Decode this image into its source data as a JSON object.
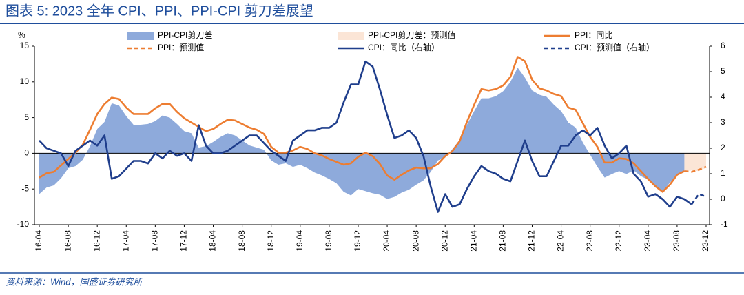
{
  "chart_data": {
    "type": "line",
    "title": "图表 5:  2023 全年 CPI、PPI、PPI-CPI 剪刀差展望",
    "source": "资料来源：Wind，国盛证券研究所",
    "y_label": "%",
    "categories": [
      "16-04",
      null,
      null,
      null,
      "16-08",
      null,
      null,
      null,
      "16-12",
      null,
      null,
      null,
      "17-04",
      null,
      null,
      null,
      "17-08",
      null,
      null,
      null,
      "17-12",
      null,
      null,
      null,
      "18-04",
      null,
      null,
      null,
      "18-08",
      null,
      null,
      null,
      "18-12",
      null,
      null,
      null,
      "19-04",
      null,
      null,
      null,
      "19-08",
      null,
      null,
      null,
      "19-12",
      null,
      null,
      null,
      "20-04",
      null,
      null,
      null,
      "20-08",
      null,
      null,
      null,
      "20-12",
      null,
      null,
      null,
      "21-04",
      null,
      null,
      null,
      "21-08",
      null,
      null,
      null,
      "21-12",
      null,
      null,
      null,
      "22-04",
      null,
      null,
      null,
      "22-08",
      null,
      null,
      null,
      "22-12",
      null,
      null,
      null,
      "23-04",
      null,
      null,
      null,
      "23-08",
      null,
      null,
      null,
      "23-12"
    ],
    "ylim": [
      -10,
      15
    ],
    "yticks": [
      -10,
      -5,
      0,
      5,
      10,
      15
    ],
    "y2lim": [
      -1,
      6
    ],
    "y2ticks": [
      -1,
      0,
      1,
      2,
      3,
      4,
      5,
      6
    ],
    "series": [
      {
        "name": "PPI-CPI剪刀差",
        "kind": "area",
        "color": "#8eaadb",
        "values": [
          -5.7,
          -4.8,
          -4.5,
          -3.5,
          -2.1,
          -1.8,
          -0.9,
          1.0,
          3.4,
          4.4,
          7.0,
          6.7,
          5.2,
          4.0,
          4.0,
          4.1,
          4.5,
          5.3,
          5.0,
          4.1,
          3.1,
          2.8,
          0.8,
          1.0,
          1.6,
          2.3,
          2.8,
          2.5,
          1.8,
          1.1,
          0.8,
          0.5,
          -1.0,
          -1.6,
          -1.4,
          -1.9,
          -1.6,
          -2.1,
          -2.7,
          -3.1,
          -3.6,
          -4.2,
          -5.4,
          -5.9,
          -5.0,
          -5.3,
          -5.6,
          -5.8,
          -6.4,
          -6.1,
          -5.5,
          -5.1,
          -4.4,
          -3.8,
          -2.6,
          -1.0,
          -0.6,
          0.6,
          1.9,
          4.0,
          5.9,
          7.7,
          7.7,
          8.0,
          8.7,
          10.0,
          12.0,
          10.6,
          8.8,
          8.2,
          7.9,
          6.8,
          5.9,
          4.3,
          3.6,
          1.5,
          -0.2,
          -1.9,
          -3.4,
          -2.9,
          -2.5,
          -2.9,
          -2.4,
          -3.2,
          -3.7,
          -4.8,
          -5.4,
          -4.1,
          -3.1,
          -2.5,
          null,
          null,
          null
        ]
      },
      {
        "name": "PPI-CPI剪刀差：预测值",
        "kind": "area",
        "color": "#fbe5d6",
        "values": [
          null,
          null,
          null,
          null,
          null,
          null,
          null,
          null,
          null,
          null,
          null,
          null,
          null,
          null,
          null,
          null,
          null,
          null,
          null,
          null,
          null,
          null,
          null,
          null,
          null,
          null,
          null,
          null,
          null,
          null,
          null,
          null,
          null,
          null,
          null,
          null,
          null,
          null,
          null,
          null,
          null,
          null,
          null,
          null,
          null,
          null,
          null,
          null,
          null,
          null,
          null,
          null,
          null,
          null,
          null,
          null,
          null,
          null,
          null,
          null,
          null,
          null,
          null,
          null,
          null,
          null,
          null,
          null,
          null,
          null,
          null,
          null,
          null,
          null,
          null,
          null,
          null,
          null,
          null,
          null,
          null,
          null,
          null,
          null,
          null,
          null,
          null,
          null,
          null,
          -2.5,
          -2.4,
          -2.5,
          -2.0
        ]
      },
      {
        "name": "PPI：同比",
        "kind": "line",
        "color": "#ed7d31",
        "values": [
          -3.4,
          -2.8,
          -2.6,
          -1.7,
          -0.8,
          0.1,
          1.2,
          3.3,
          5.5,
          6.9,
          7.8,
          7.6,
          6.4,
          5.5,
          5.5,
          5.5,
          6.3,
          6.9,
          6.9,
          5.8,
          4.9,
          4.3,
          3.7,
          3.1,
          3.4,
          4.1,
          4.7,
          4.6,
          4.1,
          3.6,
          3.3,
          2.7,
          0.9,
          0.1,
          0.1,
          0.4,
          0.9,
          0.6,
          0.0,
          -0.3,
          -0.8,
          -1.2,
          -1.6,
          -1.4,
          -0.5,
          0.1,
          -0.4,
          -1.5,
          -3.1,
          -3.7,
          -3.0,
          -2.4,
          -2.0,
          -2.1,
          -2.1,
          -1.5,
          -0.4,
          0.3,
          1.7,
          4.4,
          6.8,
          9.0,
          8.8,
          9.0,
          9.5,
          10.7,
          13.5,
          12.9,
          10.3,
          9.1,
          8.8,
          8.3,
          8.0,
          6.4,
          6.1,
          4.2,
          2.3,
          0.9,
          -1.3,
          -1.3,
          -0.7,
          -0.8,
          -1.4,
          -2.5,
          -3.6,
          -4.6,
          -5.4,
          -4.4,
          -3.0,
          -2.5,
          null,
          null,
          null
        ]
      },
      {
        "name": "PPI：预测值",
        "kind": "line",
        "dashed": true,
        "color": "#ed7d31",
        "values": [
          null,
          null,
          null,
          null,
          null,
          null,
          null,
          null,
          null,
          null,
          null,
          null,
          null,
          null,
          null,
          null,
          null,
          null,
          null,
          null,
          null,
          null,
          null,
          null,
          null,
          null,
          null,
          null,
          null,
          null,
          null,
          null,
          null,
          null,
          null,
          null,
          null,
          null,
          null,
          null,
          null,
          null,
          null,
          null,
          null,
          null,
          null,
          null,
          null,
          null,
          null,
          null,
          null,
          null,
          null,
          null,
          null,
          null,
          null,
          null,
          null,
          null,
          null,
          null,
          null,
          null,
          null,
          null,
          null,
          null,
          null,
          null,
          null,
          null,
          null,
          null,
          null,
          null,
          null,
          null,
          null,
          null,
          null,
          null,
          null,
          null,
          null,
          null,
          null,
          -2.5,
          -2.6,
          -2.3,
          -1.9
        ]
      },
      {
        "name": "CPI：同比（右轴）",
        "kind": "line",
        "axis": "y2",
        "color": "#1f3e8c",
        "values": [
          2.3,
          2.0,
          1.9,
          1.8,
          1.3,
          1.9,
          2.1,
          2.3,
          2.1,
          2.5,
          0.8,
          0.9,
          1.2,
          1.5,
          1.5,
          1.4,
          1.8,
          1.6,
          1.9,
          1.7,
          1.8,
          1.5,
          2.9,
          2.1,
          1.8,
          1.8,
          1.9,
          2.1,
          2.3,
          2.5,
          2.5,
          2.2,
          1.9,
          1.7,
          1.5,
          2.3,
          2.5,
          2.7,
          2.7,
          2.8,
          2.8,
          3.0,
          3.8,
          4.5,
          4.5,
          5.4,
          5.2,
          4.3,
          3.3,
          2.4,
          2.5,
          2.7,
          2.4,
          1.7,
          0.5,
          -0.5,
          0.2,
          -0.3,
          -0.2,
          0.4,
          0.9,
          1.3,
          1.1,
          1.0,
          0.8,
          0.7,
          1.5,
          2.3,
          1.5,
          0.9,
          0.9,
          1.5,
          2.1,
          2.1,
          2.5,
          2.7,
          2.5,
          2.8,
          2.1,
          1.6,
          1.8,
          2.1,
          1.0,
          0.7,
          0.1,
          0.2,
          0.0,
          -0.3,
          0.1,
          0.0,
          -0.2,
          null,
          null
        ]
      },
      {
        "name": "CPI：预测值（右轴）",
        "kind": "line",
        "axis": "y2",
        "dashed": true,
        "color": "#1f3e8c",
        "values": [
          null,
          null,
          null,
          null,
          null,
          null,
          null,
          null,
          null,
          null,
          null,
          null,
          null,
          null,
          null,
          null,
          null,
          null,
          null,
          null,
          null,
          null,
          null,
          null,
          null,
          null,
          null,
          null,
          null,
          null,
          null,
          null,
          null,
          null,
          null,
          null,
          null,
          null,
          null,
          null,
          null,
          null,
          null,
          null,
          null,
          null,
          null,
          null,
          null,
          null,
          null,
          null,
          null,
          null,
          null,
          null,
          null,
          null,
          null,
          null,
          null,
          null,
          null,
          null,
          null,
          null,
          null,
          null,
          null,
          null,
          null,
          null,
          null,
          null,
          null,
          null,
          null,
          null,
          null,
          null,
          null,
          null,
          null,
          null,
          null,
          null,
          null,
          null,
          null,
          null,
          -0.2,
          0.2,
          0.1
        ]
      }
    ]
  }
}
